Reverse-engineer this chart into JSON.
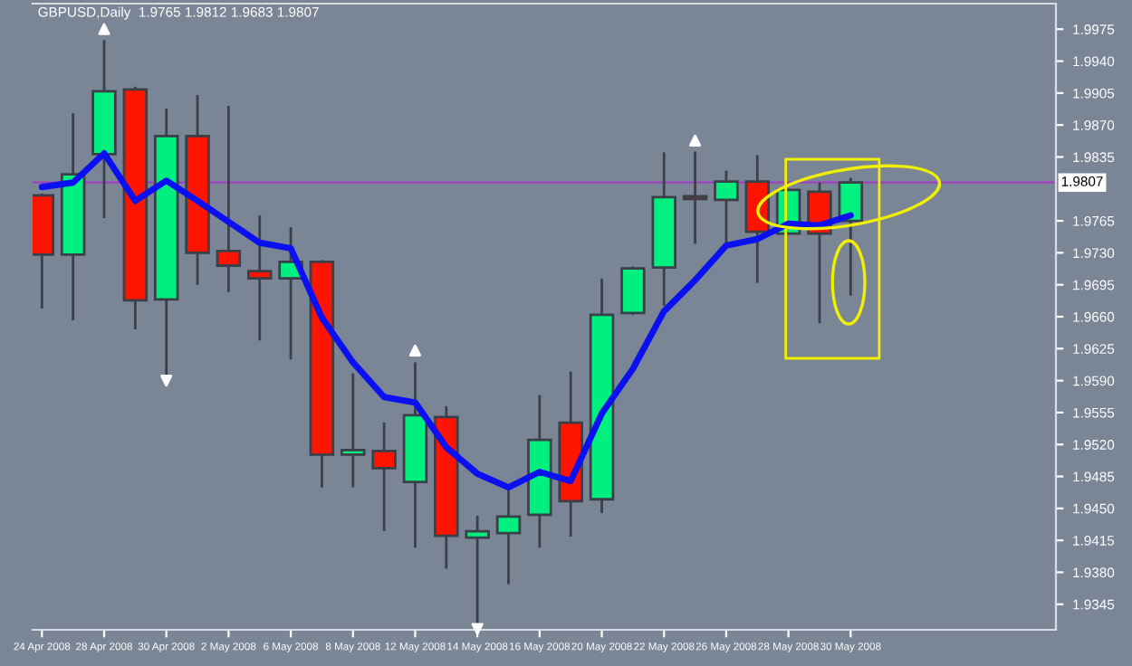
{
  "chart_data": {
    "type": "candlestick",
    "title": "GBPUSD,Daily  1.9765 1.9812 1.9683 1.9807",
    "categories": [
      "24 Apr 2008",
      null,
      "28 Apr 2008",
      null,
      "30 Apr 2008",
      null,
      "2 May 2008",
      null,
      "6 May 2008",
      null,
      "8 May 2008",
      null,
      "12 May 2008",
      null,
      "14 May 2008",
      null,
      "16 May 2008",
      null,
      "20 May 2008",
      null,
      "22 May 2008",
      null,
      "26 May 2008",
      null,
      "28 May 2008",
      null,
      "30 May 2008"
    ],
    "ohlc": [
      [
        1.9793,
        1.9795,
        1.9669,
        1.9728
      ],
      [
        1.9728,
        1.9883,
        1.9656,
        1.9816
      ],
      [
        1.9838,
        1.9963,
        1.9768,
        1.9907
      ],
      [
        1.9909,
        1.9912,
        1.9646,
        1.9678
      ],
      [
        1.9679,
        1.9888,
        1.9596,
        1.9858
      ],
      [
        1.9858,
        1.9903,
        1.9695,
        1.973
      ],
      [
        1.9732,
        1.9891,
        1.9687,
        1.9716
      ],
      [
        1.971,
        1.9771,
        1.9634,
        1.9702
      ],
      [
        1.9702,
        1.9758,
        1.9613,
        1.972
      ],
      [
        1.972,
        1.9722,
        1.9473,
        1.9509
      ],
      [
        1.9509,
        1.9598,
        1.9473,
        1.9514
      ],
      [
        1.9513,
        1.9544,
        1.9425,
        1.9494
      ],
      [
        1.9479,
        1.961,
        1.9407,
        1.9552
      ],
      [
        1.955,
        1.9562,
        1.9384,
        1.942
      ],
      [
        1.9418,
        1.9442,
        1.932,
        1.9425
      ],
      [
        1.9423,
        1.9471,
        1.9367,
        1.9441
      ],
      [
        1.9443,
        1.9574,
        1.9407,
        1.9525
      ],
      [
        1.9544,
        1.96,
        1.9419,
        1.9458
      ],
      [
        1.946,
        1.9702,
        1.9445,
        1.9662
      ],
      [
        1.9664,
        1.9715,
        1.9662,
        1.9713
      ],
      [
        1.9714,
        1.984,
        1.9672,
        1.9791
      ],
      [
        1.9792,
        1.9841,
        1.974,
        1.9789
      ],
      [
        1.9788,
        1.982,
        1.9741,
        1.9808
      ],
      [
        1.9808,
        1.9837,
        1.9697,
        1.9753
      ],
      [
        1.9751,
        1.98,
        1.9751,
        1.9799
      ],
      [
        1.9797,
        1.9807,
        1.9653,
        1.9751
      ],
      [
        1.9765,
        1.9812,
        1.9683,
        1.9807
      ]
    ],
    "colors": [
      "#ff1400",
      "#00f080",
      "#00f080",
      "#ff1400",
      "#00f080",
      "#ff1400",
      "#ff1400",
      "#ff1400",
      "#00f080",
      "#ff1400",
      "#00f080",
      "#ff1400",
      "#00f080",
      "#ff1400",
      "#00f080",
      "#00f080",
      "#00f080",
      "#ff1400",
      "#00f080",
      "#00f080",
      "#00f080",
      "#ff1400",
      "#00f080",
      "#ff1400",
      "#00f080",
      "#ff1400",
      "#00f080"
    ],
    "series": [
      {
        "type": "line",
        "color": "#0a10f0",
        "values": [
          1.9802,
          1.9807,
          1.9839,
          1.9787,
          1.9809,
          1.9787,
          1.9764,
          1.9741,
          1.9735,
          1.9659,
          1.961,
          1.9572,
          1.9566,
          1.9517,
          1.9488,
          1.9473,
          1.949,
          1.948,
          1.9554,
          1.9603,
          1.9666,
          1.97,
          1.9738,
          1.9745,
          1.9762,
          1.976,
          1.9771
        ]
      },
      {
        "type": "scatter",
        "marker": "triangle",
        "color": "#ffffff",
        "values": [
          null,
          null,
          1.9975,
          null,
          null,
          null,
          null,
          null,
          null,
          null,
          null,
          null,
          1.9623,
          null,
          null,
          null,
          null,
          null,
          null,
          null,
          null,
          1.9853,
          null,
          null,
          null,
          null,
          null
        ]
      },
      {
        "type": "scatter",
        "marker": "triangle_down",
        "color": "#ffffff",
        "values": [
          null,
          null,
          null,
          null,
          1.959,
          null,
          null,
          null,
          null,
          null,
          null,
          null,
          null,
          null,
          1.9318,
          null,
          null,
          null,
          null,
          null,
          null,
          null,
          null,
          null,
          null,
          null,
          null
        ]
      }
    ],
    "ylim": [
      1.9317,
      2.0003
    ],
    "yticks": [
      1.9975,
      {
        "value": 1.994,
        "label": "1.9940"
      },
      1.9905,
      {
        "value": 1.987,
        "label": "1.9870"
      },
      1.9835,
      1.9765,
      {
        "value": 1.973,
        "label": "1.9730"
      },
      1.9695,
      {
        "value": 1.966,
        "label": "1.9660"
      },
      1.9625,
      {
        "value": 1.959,
        "label": "1.9590"
      },
      1.9555,
      {
        "value": 1.952,
        "label": "1.9520"
      },
      1.9485,
      {
        "value": 1.945,
        "label": "1.9450"
      },
      1.9415,
      {
        "value": 1.938,
        "label": "1.9380"
      },
      1.9345
    ],
    "ref_lines": [
      {
        "axis": "y",
        "value": 1.9807,
        "label": "1.9807",
        "color": "#a040c0"
      }
    ],
    "grid": false,
    "legend": false
  }
}
